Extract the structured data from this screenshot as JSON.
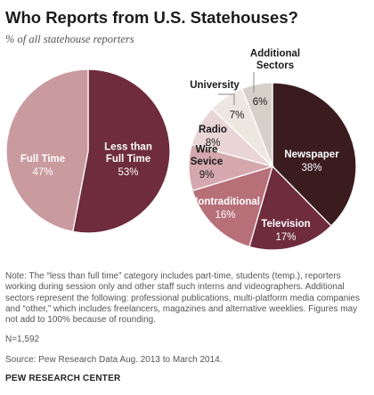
{
  "title": "Who Reports from U.S. Statehouses?",
  "subtitle": "% of all statehouse reporters",
  "chart_data": [
    {
      "type": "pie",
      "slices": [
        {
          "label_lines": [
            "Less than",
            "Full Time"
          ],
          "value": 53,
          "value_label": "53%",
          "color": "#6e2c3c"
        },
        {
          "label_lines": [
            "Full Time"
          ],
          "value": 47,
          "value_label": "47%",
          "color": "#c99a9e"
        }
      ]
    },
    {
      "type": "pie",
      "slices": [
        {
          "label_lines": [
            "Newspaper"
          ],
          "value": 38,
          "value_label": "38%",
          "color": "#3a1c1f"
        },
        {
          "label_lines": [
            "Television"
          ],
          "value": 17,
          "value_label": "17%",
          "color": "#6e2c3c"
        },
        {
          "label_lines": [
            "Nontraditional"
          ],
          "value": 16,
          "value_label": "16%",
          "color": "#b76f78"
        },
        {
          "label_lines": [
            "Wire",
            "Sevice"
          ],
          "value": 9,
          "value_label": "9%",
          "color": "#d4a8ad"
        },
        {
          "label_lines": [
            "Radio"
          ],
          "value": 8,
          "value_label": "8%",
          "color": "#ead5d6"
        },
        {
          "label_lines": [
            "University"
          ],
          "value": 7,
          "value_label": "7%",
          "color": "#ece8e0"
        },
        {
          "label_lines": [
            "Additional",
            "Sectors"
          ],
          "value": 6,
          "value_label": "6%",
          "color": "#d5d1c8"
        }
      ]
    }
  ],
  "note": "Note: The “less than full time” category includes  part-time, students (temp.), reporters working during session only and other staff such interns and videographers. Additional sectors represent the following: professional publications, multi-platform media companies and “other,” which includes freelancers, magazines and alternative weeklies. Figures may not add to 100% because of rounding.",
  "sample_size": "N=1,592",
  "source": "Source: Pew Research Data Aug. 2013 to March 2014.",
  "organization": "PEW RESEARCH CENTER"
}
